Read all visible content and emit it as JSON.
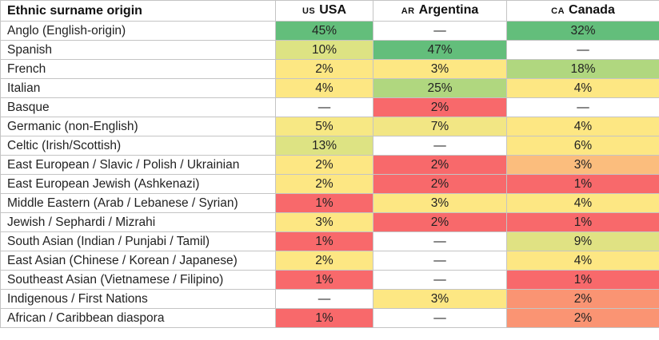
{
  "header": {
    "first": "Ethnic surname origin",
    "countries": [
      {
        "code": "US",
        "name": "USA"
      },
      {
        "code": "AR",
        "name": "Argentina"
      },
      {
        "code": "CA",
        "name": "Canada"
      }
    ]
  },
  "rows": [
    {
      "label": "Anglo (English-origin)",
      "values": [
        {
          "text": "45%",
          "color": "#63be7b"
        },
        {
          "text": "—",
          "color": "#ffffff"
        },
        {
          "text": "32%",
          "color": "#63be7b"
        }
      ]
    },
    {
      "label": "Spanish",
      "values": [
        {
          "text": "10%",
          "color": "#dde383"
        },
        {
          "text": "47%",
          "color": "#63be7b"
        },
        {
          "text": "—",
          "color": "#ffffff"
        }
      ]
    },
    {
      "label": "French",
      "values": [
        {
          "text": "2%",
          "color": "#fde783"
        },
        {
          "text": "3%",
          "color": "#fde783"
        },
        {
          "text": "18%",
          "color": "#b0d77f"
        }
      ]
    },
    {
      "label": "Italian",
      "values": [
        {
          "text": "4%",
          "color": "#fde783"
        },
        {
          "text": "25%",
          "color": "#b0d77f"
        },
        {
          "text": "4%",
          "color": "#fde783"
        }
      ]
    },
    {
      "label": "Basque",
      "values": [
        {
          "text": "—",
          "color": "#ffffff"
        },
        {
          "text": "2%",
          "color": "#f8696b"
        },
        {
          "text": "—",
          "color": "#ffffff"
        }
      ]
    },
    {
      "label": "Germanic (non-English)",
      "values": [
        {
          "text": "5%",
          "color": "#f7e884"
        },
        {
          "text": "7%",
          "color": "#f2e684"
        },
        {
          "text": "4%",
          "color": "#fde783"
        }
      ]
    },
    {
      "label": "Celtic (Irish/Scottish)",
      "values": [
        {
          "text": "13%",
          "color": "#dde383"
        },
        {
          "text": "—",
          "color": "#ffffff"
        },
        {
          "text": "6%",
          "color": "#fde783"
        }
      ]
    },
    {
      "label": "East European / Slavic / Polish / Ukrainian",
      "values": [
        {
          "text": "2%",
          "color": "#fde783"
        },
        {
          "text": "2%",
          "color": "#f8696b"
        },
        {
          "text": "3%",
          "color": "#fbbd7d"
        }
      ]
    },
    {
      "label": "East European Jewish (Ashkenazi)",
      "values": [
        {
          "text": "2%",
          "color": "#fde783"
        },
        {
          "text": "2%",
          "color": "#f8696b"
        },
        {
          "text": "1%",
          "color": "#f8696b"
        }
      ]
    },
    {
      "label": "Middle Eastern (Arab / Lebanese / Syrian)",
      "values": [
        {
          "text": "1%",
          "color": "#f8696b"
        },
        {
          "text": "3%",
          "color": "#fde783"
        },
        {
          "text": "4%",
          "color": "#fde783"
        }
      ]
    },
    {
      "label": "Jewish / Sephardi / Mizrahi",
      "values": [
        {
          "text": "3%",
          "color": "#fde783"
        },
        {
          "text": "2%",
          "color": "#f8696b"
        },
        {
          "text": "1%",
          "color": "#f8696b"
        }
      ]
    },
    {
      "label": "South Asian (Indian / Punjabi / Tamil)",
      "values": [
        {
          "text": "1%",
          "color": "#f8696b"
        },
        {
          "text": "—",
          "color": "#ffffff"
        },
        {
          "text": "9%",
          "color": "#e0e283"
        }
      ]
    },
    {
      "label": "East Asian (Chinese / Korean / Japanese)",
      "values": [
        {
          "text": "2%",
          "color": "#fde783"
        },
        {
          "text": "—",
          "color": "#ffffff"
        },
        {
          "text": "4%",
          "color": "#fde783"
        }
      ]
    },
    {
      "label": "Southeast Asian (Vietnamese / Filipino)",
      "values": [
        {
          "text": "1%",
          "color": "#f8696b"
        },
        {
          "text": "—",
          "color": "#ffffff"
        },
        {
          "text": "1%",
          "color": "#f8696b"
        }
      ]
    },
    {
      "label": "Indigenous / First Nations",
      "values": [
        {
          "text": "—",
          "color": "#ffffff"
        },
        {
          "text": "3%",
          "color": "#fde783"
        },
        {
          "text": "2%",
          "color": "#fa9473"
        }
      ]
    },
    {
      "label": "African / Caribbean diaspora",
      "values": [
        {
          "text": "1%",
          "color": "#f8696b"
        },
        {
          "text": "—",
          "color": "#ffffff"
        },
        {
          "text": "2%",
          "color": "#fa9473"
        }
      ]
    }
  ]
}
